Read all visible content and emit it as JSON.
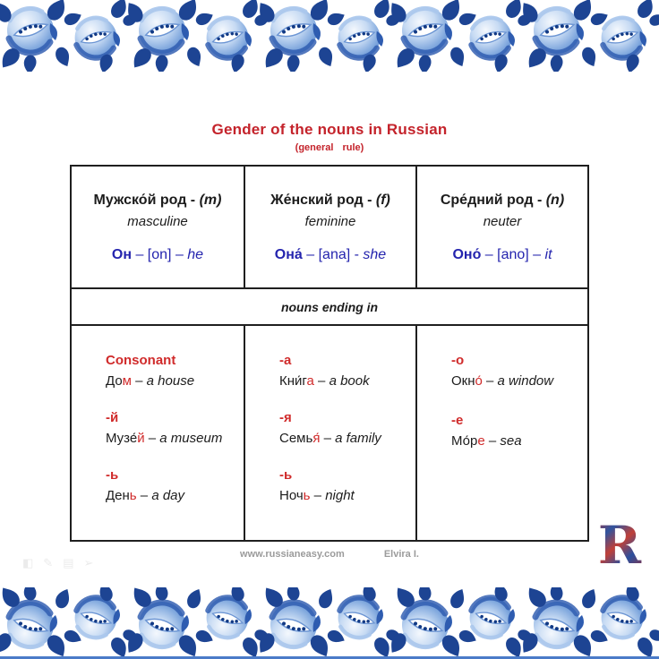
{
  "page": {
    "title": "Gender of the nouns in Russian",
    "subtitle": "(general rule)"
  },
  "colors": {
    "k": "#1c1c1c",
    "r": "#d02b2b",
    "bl": "#2424ae",
    "title_red": "#c4232b",
    "footer_gray": "#9b9b9b",
    "border_blue_dark": "#1d4493",
    "border_blue_light": "#7fa7dd"
  },
  "table": {
    "middle_label": "nouns ending in",
    "columns": [
      {
        "header": [
          {
            "t": "Мужско́й род - ",
            "b": 1
          },
          {
            "t": "(m)",
            "b": 1,
            "i": 1
          }
        ],
        "subheader": "masculine",
        "pronoun": [
          {
            "t": "Он",
            "b": 1,
            "c": "bl"
          },
          {
            "t": " – [on] – ",
            "c": "bl"
          },
          {
            "t": "he",
            "i": 1,
            "c": "bl"
          }
        ],
        "entries": [
          {
            "ending": "Consonant",
            "word": [
              {
                "t": "До"
              },
              {
                "t": "м",
                "c": "r"
              },
              {
                "t": " – "
              },
              {
                "t": "a house",
                "i": 1
              }
            ]
          },
          {
            "ending": "-й",
            "word": [
              {
                "t": "Музе́"
              },
              {
                "t": "й",
                "c": "r"
              },
              {
                "t": " – "
              },
              {
                "t": "a museum",
                "i": 1
              }
            ]
          },
          {
            "ending": "-ь",
            "word": [
              {
                "t": "Ден"
              },
              {
                "t": "ь",
                "c": "r"
              },
              {
                "t": " – "
              },
              {
                "t": "a day",
                "i": 1
              }
            ]
          }
        ]
      },
      {
        "header": [
          {
            "t": "Же́нский род - ",
            "b": 1
          },
          {
            "t": "(f)",
            "b": 1,
            "i": 1
          }
        ],
        "subheader": "feminine",
        "pronoun": [
          {
            "t": "Она́",
            "b": 1,
            "c": "bl"
          },
          {
            "t": " – [ana] - ",
            "c": "bl"
          },
          {
            "t": "she",
            "i": 1,
            "c": "bl"
          }
        ],
        "entries": [
          {
            "ending": "-а",
            "word": [
              {
                "t": "Кни́г"
              },
              {
                "t": "а",
                "c": "r"
              },
              {
                "t": " – "
              },
              {
                "t": "a book",
                "i": 1
              }
            ]
          },
          {
            "ending": "-я",
            "word": [
              {
                "t": "Семь"
              },
              {
                "t": "я́",
                "c": "r"
              },
              {
                "t": " – "
              },
              {
                "t": "a family",
                "i": 1
              }
            ]
          },
          {
            "ending": "-ь",
            "word": [
              {
                "t": "Ноч"
              },
              {
                "t": "ь",
                "c": "r"
              },
              {
                "t": " – "
              },
              {
                "t": "night",
                "i": 1
              }
            ]
          }
        ]
      },
      {
        "header": [
          {
            "t": "Сре́дний род - ",
            "b": 1
          },
          {
            "t": "(n)",
            "b": 1,
            "i": 1
          }
        ],
        "subheader": "neuter",
        "pronoun": [
          {
            "t": "Оно́",
            "b": 1,
            "c": "bl"
          },
          {
            "t": " – [ano] – ",
            "c": "bl"
          },
          {
            "t": "it",
            "i": 1,
            "c": "bl"
          }
        ],
        "entries": [
          {
            "ending": "-о",
            "word": [
              {
                "t": "Окн"
              },
              {
                "t": "о́",
                "c": "r"
              },
              {
                "t": " – "
              },
              {
                "t": "a window",
                "i": 1
              }
            ]
          },
          {
            "ending": "-е",
            "word": [
              {
                "t": "Мо́р"
              },
              {
                "t": "е",
                "c": "r"
              },
              {
                "t": " – "
              },
              {
                "t": "sea",
                "i": 1
              }
            ]
          }
        ]
      }
    ]
  },
  "footer": {
    "website": "www.russianeasy.com",
    "author": "Elvira I."
  },
  "logo": {
    "letter": "R"
  },
  "watermark_icons": [
    {
      "name": "like-icon",
      "glyph": "◧"
    },
    {
      "name": "pencil-icon",
      "glyph": "✎"
    },
    {
      "name": "grid-icon",
      "glyph": "▤"
    },
    {
      "name": "share-icon",
      "glyph": "➢"
    }
  ]
}
